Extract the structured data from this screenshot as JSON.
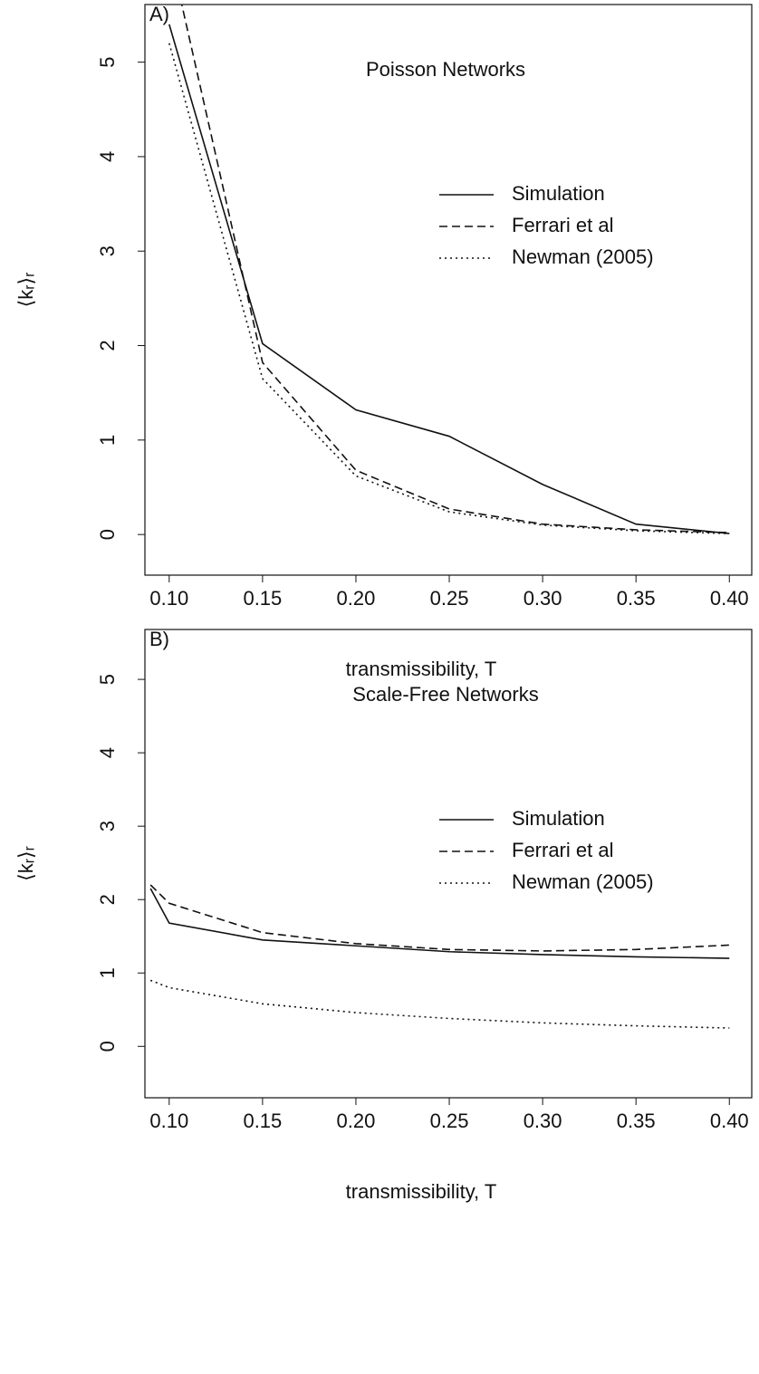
{
  "chart_data": [
    {
      "type": "line",
      "panel": "A)",
      "title": "Poisson Networks",
      "x_label": "transmissibility, T",
      "y_label": "⟨kᵣ⟩ᵣ",
      "x": [
        0.1,
        0.15,
        0.2,
        0.25,
        0.3,
        0.35,
        0.4
      ],
      "series": [
        {
          "name": "Simulation",
          "color": "#111111",
          "dash": "solid",
          "values": [
            5.4,
            2.02,
            1.32,
            1.04,
            0.53,
            0.11,
            0.01
          ]
        },
        {
          "name": "Ferrari et al",
          "color": "#111111",
          "dash": "dashed",
          "values": [
            6.2,
            1.82,
            0.68,
            0.27,
            0.11,
            0.05,
            0.02
          ]
        },
        {
          "name": "Newman (2005)",
          "color": "#111111",
          "dash": "dotted",
          "values": [
            5.2,
            1.65,
            0.62,
            0.24,
            0.1,
            0.04,
            0.01
          ]
        }
      ],
      "xlim": [
        0.087,
        0.412
      ],
      "ylim": [
        -0.43,
        5.61
      ],
      "xticks": [
        {
          "value": 0.1,
          "label": "0.10"
        },
        {
          "value": 0.15,
          "label": "0.15"
        },
        {
          "value": 0.2,
          "label": "0.20"
        },
        {
          "value": 0.25,
          "label": "0.25"
        },
        {
          "value": 0.3,
          "label": "0.30"
        },
        {
          "value": 0.35,
          "label": "0.35"
        },
        {
          "value": 0.4,
          "label": "0.40"
        }
      ],
      "yticks": [
        0,
        1,
        2,
        3,
        4,
        5
      ],
      "legend": "right",
      "grid": false
    },
    {
      "type": "line",
      "panel": "B)",
      "title": "Scale-Free Networks",
      "x_label": "transmissibility, T",
      "y_label": "⟨kᵣ⟩ᵣ",
      "x": [
        0.09,
        0.1,
        0.15,
        0.2,
        0.25,
        0.3,
        0.35,
        0.4
      ],
      "series": [
        {
          "name": "Simulation",
          "color": "#111111",
          "dash": "solid",
          "values": [
            2.15,
            1.68,
            1.45,
            1.37,
            1.29,
            1.25,
            1.22,
            1.2
          ]
        },
        {
          "name": "Ferrari et al",
          "color": "#111111",
          "dash": "dashed",
          "values": [
            2.2,
            1.95,
            1.55,
            1.4,
            1.32,
            1.3,
            1.32,
            1.38
          ]
        },
        {
          "name": "Newman (2005)",
          "color": "#111111",
          "dash": "dotted",
          "values": [
            0.9,
            0.8,
            0.58,
            0.46,
            0.38,
            0.32,
            0.28,
            0.25
          ]
        }
      ],
      "xlim": [
        0.087,
        0.412
      ],
      "ylim": [
        -0.7,
        5.68
      ],
      "xticks": [
        {
          "value": 0.1,
          "label": "0.10"
        },
        {
          "value": 0.15,
          "label": "0.15"
        },
        {
          "value": 0.2,
          "label": "0.20"
        },
        {
          "value": 0.25,
          "label": "0.25"
        },
        {
          "value": 0.3,
          "label": "0.30"
        },
        {
          "value": 0.35,
          "label": "0.35"
        },
        {
          "value": 0.4,
          "label": "0.40"
        }
      ],
      "yticks": [
        0,
        1,
        2,
        3,
        4,
        5
      ],
      "legend": "right",
      "grid": false
    }
  ]
}
